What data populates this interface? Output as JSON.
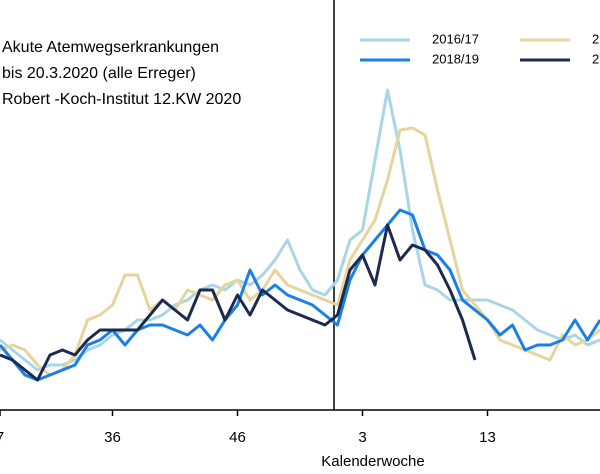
{
  "chart_data": {
    "type": "line",
    "title_lines": [
      "Akute Atemwegserkrankungen",
      "bis 20.3.2020 (alle Erreger)",
      "Robert -Koch-Institut 12.KW 2020"
    ],
    "x_label": "Kalenderwoche",
    "categories": [
      "7",
      null,
      null,
      null,
      null,
      null,
      null,
      null,
      null,
      "36",
      null,
      null,
      null,
      null,
      null,
      null,
      null,
      null,
      null,
      "46",
      null,
      null,
      null,
      null,
      null,
      null,
      null,
      null,
      null,
      "3",
      null,
      null,
      null,
      null,
      null,
      null,
      null,
      null,
      null,
      "13",
      null,
      null,
      null,
      null,
      null,
      null,
      null,
      null,
      null
    ],
    "ylim": [
      0,
      410
    ],
    "series": [
      {
        "name": "2016/17",
        "color": "#a9d6e6",
        "values": [
          70,
          60,
          50,
          40,
          45,
          45,
          50,
          60,
          65,
          75,
          80,
          90,
          90,
          95,
          105,
          110,
          120,
          125,
          120,
          130,
          125,
          135,
          150,
          170,
          140,
          120,
          115,
          130,
          170,
          180,
          250,
          320,
          260,
          180,
          125,
          120,
          110,
          110,
          110,
          110,
          105,
          100,
          90,
          80,
          75,
          70,
          75,
          65,
          70
        ]
      },
      {
        "name": "2",
        "color": "#e6d49c",
        "values": [
          60,
          65,
          60,
          45,
          35,
          40,
          55,
          90,
          95,
          105,
          135,
          135,
          100,
          110,
          100,
          120,
          115,
          110,
          125,
          130,
          110,
          120,
          140,
          125,
          120,
          115,
          110,
          105,
          150,
          170,
          190,
          230,
          280,
          282,
          275,
          220,
          170,
          120,
          105,
          90,
          70,
          65,
          60,
          55,
          50,
          75,
          65,
          70,
          80
        ]
      },
      {
        "name": "2018/19",
        "color": "#1a80e6",
        "values": [
          65,
          50,
          35,
          30,
          35,
          40,
          45,
          65,
          70,
          80,
          65,
          80,
          85,
          85,
          80,
          75,
          85,
          70,
          90,
          105,
          140,
          115,
          125,
          115,
          110,
          105,
          95,
          85,
          130,
          155,
          170,
          185,
          200,
          195,
          160,
          155,
          140,
          110,
          100,
          90,
          75,
          85,
          60,
          65,
          65,
          70,
          90,
          70,
          90
        ]
      },
      {
        "name": "2",
        "color": "#1c2a4f",
        "values": [
          55,
          50,
          40,
          30,
          55,
          60,
          55,
          70,
          80,
          80,
          80,
          80,
          95,
          110,
          100,
          90,
          120,
          120,
          90,
          115,
          95,
          120,
          110,
          100,
          95,
          90,
          85,
          95,
          140,
          155,
          125,
          185,
          150,
          165,
          160,
          145,
          120,
          90,
          50,
          null,
          null,
          null,
          null,
          null,
          null,
          null,
          null,
          null,
          null
        ]
      }
    ]
  }
}
